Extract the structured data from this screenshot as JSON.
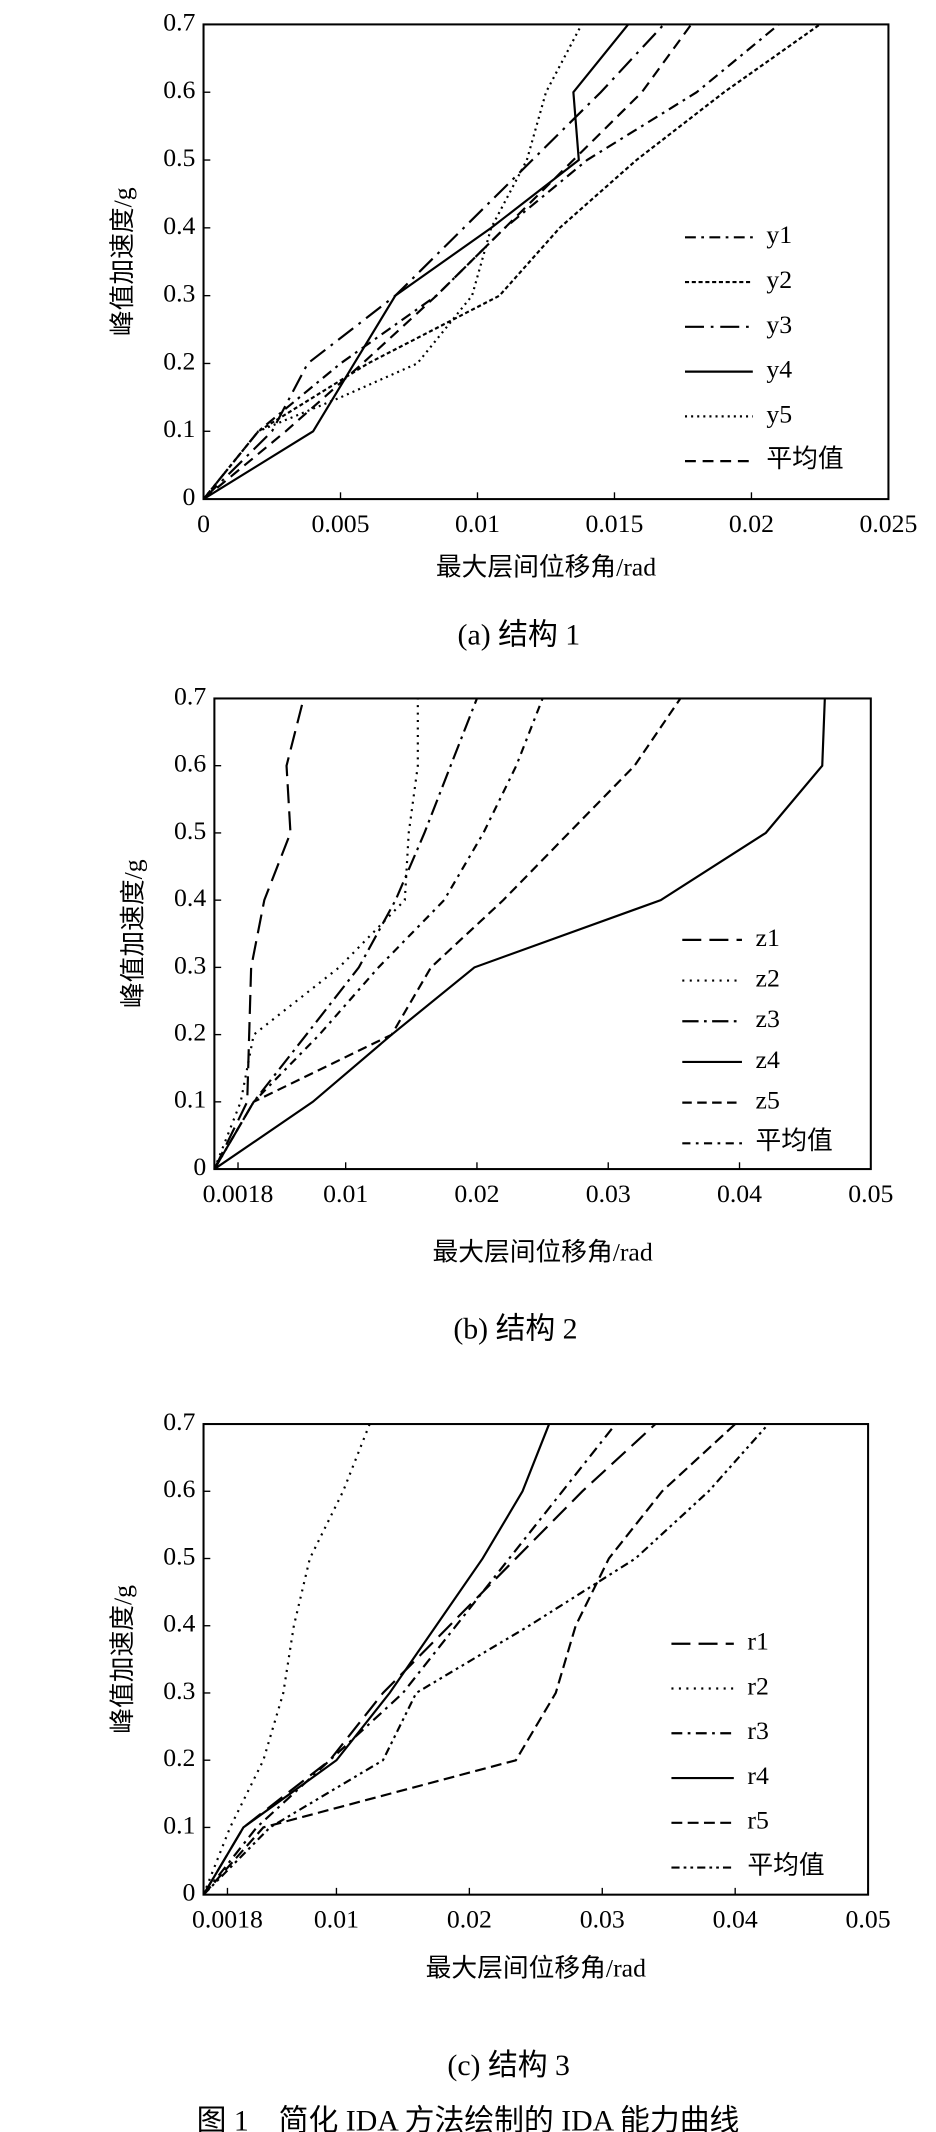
{
  "chart_data": [
    {
      "type": "line",
      "caption": "(a) 结构 1",
      "xlabel": "最大层间位移角/rad",
      "ylabel": "峰值加速度/g",
      "xlim": [
        0,
        0.025
      ],
      "ylim": [
        0,
        0.7
      ],
      "xticks": [
        0,
        0.005,
        0.01,
        0.015,
        0.02,
        0.025
      ],
      "yticks": [
        0,
        0.1,
        0.2,
        0.3,
        0.4,
        0.5,
        0.6,
        0.7
      ],
      "legend": "lower right",
      "series": [
        {
          "name": "y1",
          "color": "#000",
          "dash": "8,4,2,4",
          "x": [
            0,
            0.002,
            0.005,
            0.0085,
            0.011,
            0.014,
            0.018,
            0.021
          ],
          "values": [
            0,
            0.1,
            0.2,
            0.3,
            0.4,
            0.5,
            0.6,
            0.7
          ]
        },
        {
          "name": "y2",
          "color": "#000",
          "dash": "3,2",
          "x": [
            0,
            0.002,
            0.006,
            0.0108,
            0.013,
            0.0158,
            0.019,
            0.0225
          ],
          "values": [
            0,
            0.1,
            0.2,
            0.3,
            0.4,
            0.5,
            0.6,
            0.7
          ]
        },
        {
          "name": "y3",
          "color": "#000",
          "dash": "14,5,2,5",
          "x": [
            0,
            0.0025,
            0.0038,
            0.007,
            0.0095,
            0.012,
            0.0145,
            0.0168
          ],
          "values": [
            0,
            0.1,
            0.2,
            0.3,
            0.4,
            0.5,
            0.6,
            0.7
          ]
        },
        {
          "name": "y4",
          "color": "#000",
          "dash": "none",
          "x": [
            0,
            0.004,
            0.0055,
            0.007,
            0.0105,
            0.0137,
            0.0135,
            0.0155
          ],
          "values": [
            0,
            0.1,
            0.2,
            0.3,
            0.4,
            0.5,
            0.6,
            0.7
          ]
        },
        {
          "name": "y5",
          "color": "#000",
          "dash": "1.5,3",
          "x": [
            0,
            0.002,
            0.005,
            0.0078,
            0.0098,
            0.0105,
            0.0118,
            0.0125,
            0.0138
          ],
          "values": [
            0,
            0.1,
            0.15,
            0.2,
            0.3,
            0.4,
            0.5,
            0.6,
            0.7
          ]
        },
        {
          "name": "平均值",
          "color": "#000",
          "dash": "8,5",
          "x": [
            0,
            0.003,
            0.0058,
            0.0085,
            0.011,
            0.0135,
            0.016,
            0.0178
          ],
          "values": [
            0,
            0.1,
            0.2,
            0.3,
            0.4,
            0.5,
            0.6,
            0.7
          ]
        }
      ]
    },
    {
      "type": "line",
      "caption": "(b) 结构 2",
      "xlabel": "最大层间位移角/rad",
      "ylabel": "峰值加速度/g",
      "xlim": [
        0,
        0.05
      ],
      "ylim": [
        0,
        0.7
      ],
      "xticks": [
        0.0018,
        0.01,
        0.02,
        0.03,
        0.04,
        0.05
      ],
      "yticks": [
        0,
        0.1,
        0.2,
        0.3,
        0.4,
        0.5,
        0.6,
        0.7
      ],
      "legend": "lower right",
      "series": [
        {
          "name": "z1",
          "color": "#000",
          "dash": "14,6",
          "x": [
            0,
            0.0025,
            0.0028,
            0.0038,
            0.0058,
            0.0055,
            0.0068
          ],
          "values": [
            0,
            0.1,
            0.3,
            0.4,
            0.5,
            0.6,
            0.7
          ]
        },
        {
          "name": "z2",
          "color": "#000",
          "dash": "1.5,4",
          "x": [
            0,
            0.002,
            0.003,
            0.0095,
            0.0145,
            0.0148,
            0.0155,
            0.0155
          ],
          "values": [
            0,
            0.1,
            0.2,
            0.3,
            0.4,
            0.5,
            0.6,
            0.7
          ]
        },
        {
          "name": "z3",
          "color": "#000",
          "dash": "12,4,2,4",
          "x": [
            0,
            0.003,
            0.007,
            0.011,
            0.0138,
            0.016,
            0.018,
            0.02
          ],
          "values": [
            0,
            0.1,
            0.2,
            0.3,
            0.4,
            0.5,
            0.6,
            0.7
          ]
        },
        {
          "name": "z4",
          "color": "#000",
          "dash": "none",
          "x": [
            0,
            0.0075,
            0.0135,
            0.0198,
            0.034,
            0.042,
            0.0463,
            0.0465
          ],
          "values": [
            0,
            0.1,
            0.2,
            0.3,
            0.4,
            0.5,
            0.6,
            0.7
          ]
        },
        {
          "name": "z5",
          "color": "#000",
          "dash": "7,4",
          "x": [
            0,
            0.003,
            0.0135,
            0.0165,
            0.022,
            0.027,
            0.032,
            0.0355
          ],
          "values": [
            0,
            0.1,
            0.2,
            0.3,
            0.4,
            0.5,
            0.6,
            0.7
          ]
        },
        {
          "name": "平均值",
          "color": "#000",
          "dash": "6,4,2,4",
          "x": [
            0,
            0.003,
            0.008,
            0.0125,
            0.0175,
            0.0205,
            0.023,
            0.025
          ],
          "values": [
            0,
            0.1,
            0.2,
            0.3,
            0.4,
            0.5,
            0.6,
            0.7
          ]
        }
      ]
    },
    {
      "type": "line",
      "caption": "(c) 结构 3",
      "xlabel": "最大层间位移角/rad",
      "ylabel": "峰值加速度/g",
      "xlim": [
        0,
        0.05
      ],
      "ylim": [
        0,
        0.7
      ],
      "xticks": [
        0.0018,
        0.01,
        0.02,
        0.03,
        0.04,
        0.05
      ],
      "yticks": [
        0,
        0.1,
        0.2,
        0.3,
        0.4,
        0.5,
        0.6,
        0.7
      ],
      "legend": "lower right",
      "series": [
        {
          "name": "r1",
          "color": "#000",
          "dash": "14,6",
          "x": [
            0,
            0.003,
            0.0095,
            0.0135,
            0.0185,
            0.0235,
            0.0285,
            0.034
          ],
          "values": [
            0,
            0.1,
            0.2,
            0.3,
            0.4,
            0.5,
            0.6,
            0.7
          ]
        },
        {
          "name": "r2",
          "color": "#000",
          "dash": "1.5,4",
          "x": [
            0,
            0.002,
            0.0045,
            0.006,
            0.0068,
            0.008,
            0.0105,
            0.0125
          ],
          "values": [
            0,
            0.1,
            0.2,
            0.3,
            0.4,
            0.5,
            0.6,
            0.7
          ]
        },
        {
          "name": "r3",
          "color": "#000",
          "dash": "8,4,2,4",
          "x": [
            0,
            0.004,
            0.0095,
            0.015,
            0.019,
            0.023,
            0.027,
            0.031
          ],
          "values": [
            0,
            0.1,
            0.2,
            0.3,
            0.4,
            0.5,
            0.6,
            0.7
          ]
        },
        {
          "name": "r4",
          "color": "#000",
          "dash": "none",
          "x": [
            0,
            0.003,
            0.01,
            0.014,
            0.0175,
            0.021,
            0.024,
            0.026
          ],
          "values": [
            0,
            0.1,
            0.2,
            0.3,
            0.4,
            0.5,
            0.6,
            0.7
          ]
        },
        {
          "name": "r5",
          "color": "#000",
          "dash": "8,4",
          "x": [
            0,
            0.0045,
            0.0235,
            0.0265,
            0.028,
            0.0305,
            0.0345,
            0.04
          ],
          "values": [
            0,
            0.1,
            0.2,
            0.3,
            0.4,
            0.5,
            0.6,
            0.7
          ]
        },
        {
          "name": "平均值",
          "color": "#000",
          "dash": "6,3,2,3,2,3",
          "x": [
            0,
            0.005,
            0.0135,
            0.016,
            0.0245,
            0.0325,
            0.038,
            0.0425
          ],
          "values": [
            0,
            0.1,
            0.2,
            0.3,
            0.4,
            0.5,
            0.6,
            0.7
          ]
        }
      ]
    }
  ],
  "caption": "图 1　简化 IDA 方法绘制的 IDA 能力曲线"
}
